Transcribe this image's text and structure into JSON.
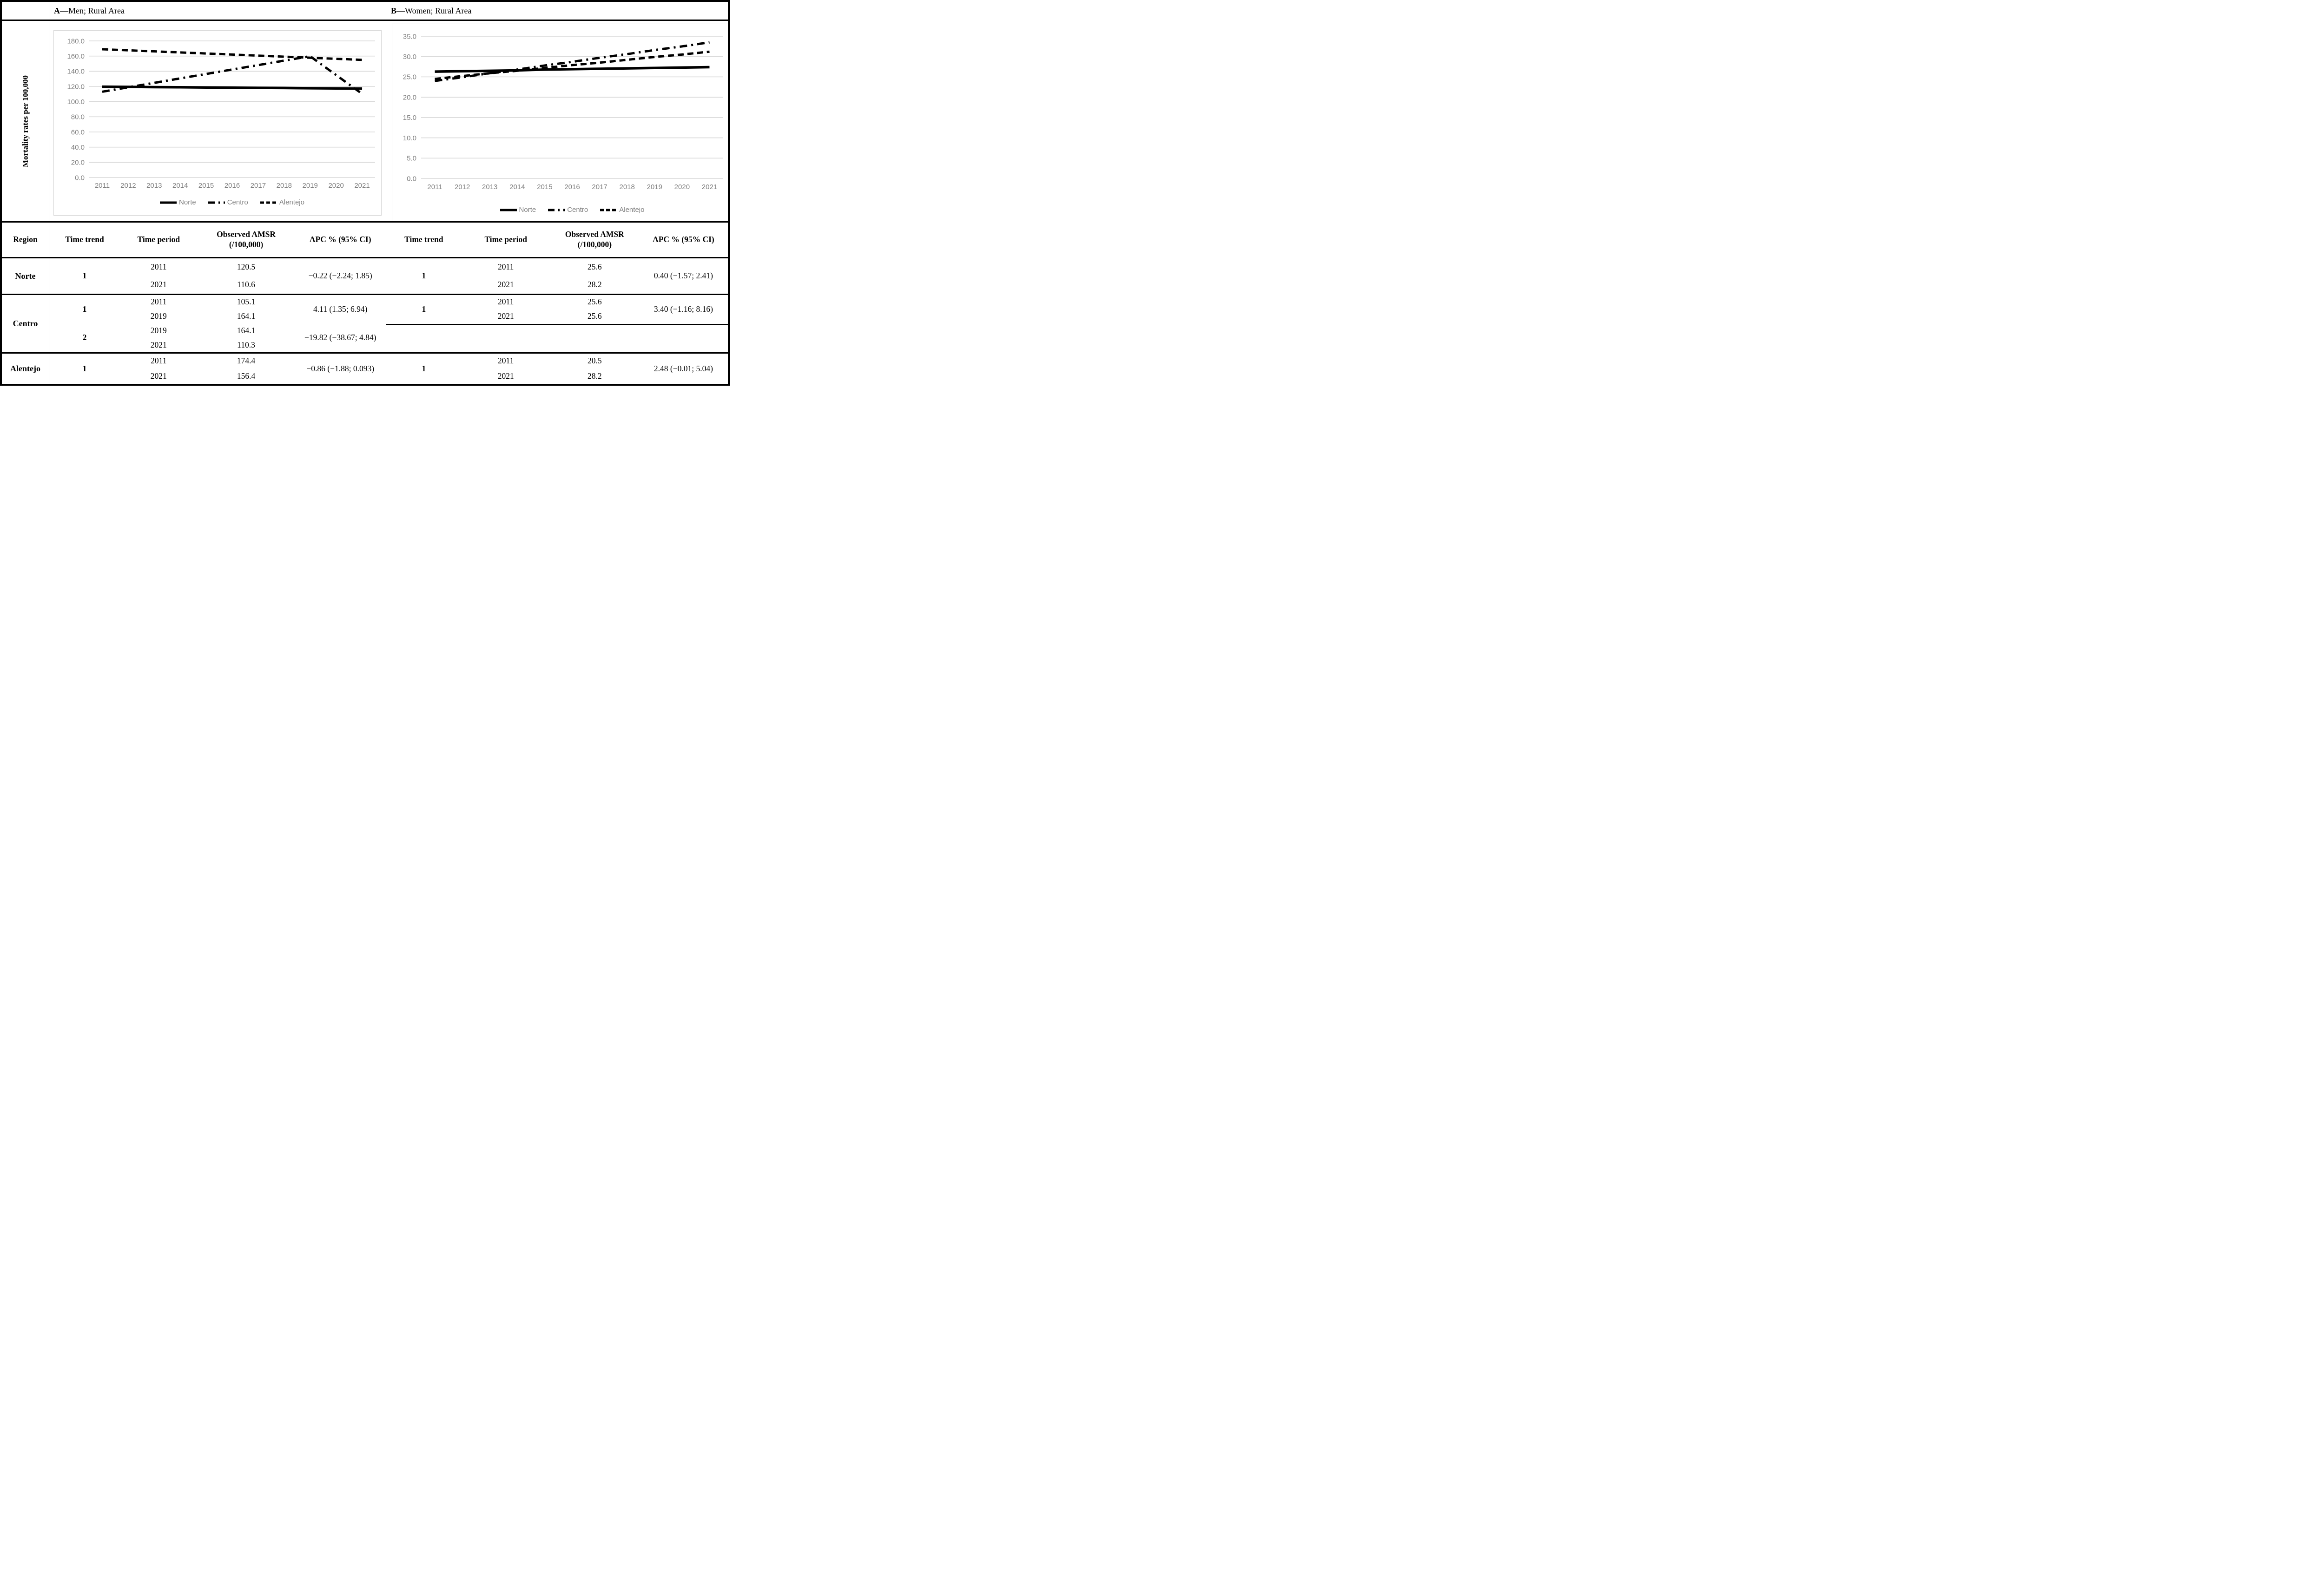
{
  "figure": {
    "table_headers": {
      "region": "Region",
      "time_trend": "Time trend",
      "time_period": "Time period",
      "observed_amsr_line1": "Observed AMSR",
      "observed_amsr_line2": "(/100,000)",
      "apc": "APC % (95% CI)"
    },
    "panels": [
      {
        "label": "A",
        "title": "—Men; Rural Area",
        "ylabel": "Mortality rates per 100,000",
        "rows": [
          {
            "region": "Norte",
            "groups": [
              {
                "trend": "1",
                "periods": [
                  {
                    "year": "2011",
                    "amsr": "120.5"
                  },
                  {
                    "year": "2021",
                    "amsr": "110.6"
                  }
                ],
                "apc": "−0.22 (−2.24; 1.85)"
              }
            ]
          },
          {
            "region": "Centro",
            "groups": [
              {
                "trend": "1",
                "periods": [
                  {
                    "year": "2011",
                    "amsr": "105.1"
                  },
                  {
                    "year": "2019",
                    "amsr": "164.1"
                  }
                ],
                "apc": "4.11 (1.35; 6.94)"
              },
              {
                "trend": "2",
                "periods": [
                  {
                    "year": "2019",
                    "amsr": "164.1"
                  },
                  {
                    "year": "2021",
                    "amsr": "110.3"
                  }
                ],
                "apc": "−19.82 (−38.67; 4.84)"
              }
            ]
          },
          {
            "region": "Alentejo",
            "groups": [
              {
                "trend": "1",
                "periods": [
                  {
                    "year": "2011",
                    "amsr": "174.4"
                  },
                  {
                    "year": "2021",
                    "amsr": "156.4"
                  }
                ],
                "apc": "−0.86 (−1.88; 0.093)"
              }
            ]
          }
        ]
      },
      {
        "label": "B",
        "title": "—Women; Rural Area",
        "ylabel": "",
        "rows": [
          {
            "groups": [
              {
                "trend": "1",
                "periods": [
                  {
                    "year": "2011",
                    "amsr": "25.6"
                  },
                  {
                    "year": "2021",
                    "amsr": "28.2"
                  }
                ],
                "apc": "0.40 (−1.57; 2.41)"
              }
            ]
          },
          {
            "groups": [
              {
                "trend": "1",
                "periods": [
                  {
                    "year": "2011",
                    "amsr": "25.6"
                  },
                  {
                    "year": "2021",
                    "amsr": "25.6"
                  }
                ],
                "apc": "3.40 (−1.16; 8.16)"
              },
              {
                "empty": true,
                "rows": 2
              }
            ]
          },
          {
            "groups": [
              {
                "trend": "1",
                "periods": [
                  {
                    "year": "2011",
                    "amsr": "20.5"
                  },
                  {
                    "year": "2021",
                    "amsr": "28.2"
                  }
                ],
                "apc": "2.48 (−0.01; 5.04)"
              }
            ]
          }
        ]
      }
    ]
  },
  "chart_data": [
    {
      "type": "line",
      "title": "A—Men; Rural Area",
      "ylabel": "Mortality rates per 100,000",
      "xlabel": "",
      "x": [
        2011,
        2012,
        2013,
        2014,
        2015,
        2016,
        2017,
        2018,
        2019,
        2020,
        2021
      ],
      "ylim": [
        0,
        180
      ],
      "ytick_step": 20,
      "grid": true,
      "legend_position": "bottom",
      "series": [
        {
          "name": "Norte",
          "style": "solid",
          "values": [
            119.6,
            119.4,
            119.1,
            118.9,
            118.6,
            118.4,
            118.1,
            117.9,
            117.6,
            117.4,
            117.1
          ]
        },
        {
          "name": "Centro",
          "style": "dashdot",
          "values": [
            113.0,
            118.9,
            124.7,
            130.6,
            136.4,
            142.3,
            148.1,
            154.0,
            159.8,
            135.0,
            110.3
          ]
        },
        {
          "name": "Alentejo",
          "style": "dashed",
          "values": [
            169.0,
            167.6,
            166.2,
            164.8,
            163.4,
            162.0,
            160.6,
            159.2,
            157.8,
            156.4,
            155.0
          ]
        }
      ]
    },
    {
      "type": "line",
      "title": "B—Women; Rural Area",
      "ylabel": "",
      "xlabel": "",
      "x": [
        2011,
        2012,
        2013,
        2014,
        2015,
        2016,
        2017,
        2018,
        2019,
        2020,
        2021
      ],
      "ylim": [
        0,
        35
      ],
      "ytick_step": 5,
      "grid": true,
      "legend_position": "bottom",
      "series": [
        {
          "name": "Norte",
          "style": "solid",
          "values": [
            26.3,
            26.4,
            26.5,
            26.6,
            26.8,
            26.9,
            27.0,
            27.1,
            27.2,
            27.3,
            27.4
          ]
        },
        {
          "name": "Centro",
          "style": "dashdot",
          "values": [
            24.0,
            24.9,
            25.9,
            26.8,
            27.8,
            28.7,
            29.7,
            30.6,
            31.6,
            32.5,
            33.5
          ]
        },
        {
          "name": "Alentejo",
          "style": "dashed",
          "values": [
            24.5,
            25.2,
            25.9,
            26.5,
            27.2,
            27.9,
            28.5,
            29.2,
            29.9,
            30.5,
            31.2
          ]
        }
      ]
    }
  ]
}
